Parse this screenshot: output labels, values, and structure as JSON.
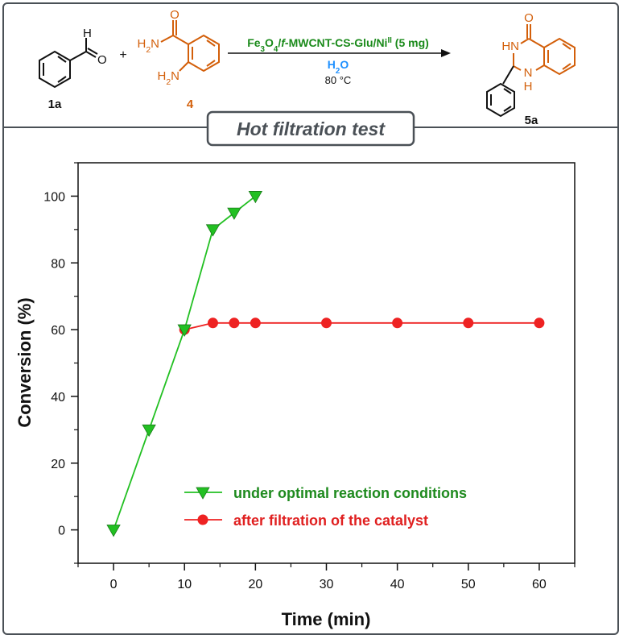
{
  "scheme": {
    "reactant_1_label": "1a",
    "reactant_1_atom_aldehyde_O": "O",
    "reactant_1_atom_aldehyde_H": "H",
    "plus": "+",
    "reactant_2_label": "4",
    "reactant_2_amide_O": "O",
    "reactant_2_amide_NH2": "H2N",
    "reactant_2_amine_NH2": "H2N",
    "catalyst": "Fe3O4/f-MWCNT-CS-Glu/NiII (5 mg)",
    "solvent": "H2O",
    "temperature": "80 °C",
    "product_label": "5a",
    "product_atom_O": "O",
    "product_atom_HN": "HN",
    "product_atom_NH_N": "N",
    "product_atom_NH_H": "H",
    "colors": {
      "reactant_2": "#d35f0a",
      "catalyst": "#1a8a1a",
      "solvent": "#1e90ff",
      "structure": "#111111"
    }
  },
  "test_title": "Hot filtration test",
  "chart_data": {
    "type": "line",
    "xlabel": "Time (min)",
    "ylabel": "Conversion (%)",
    "xlim": [
      -5,
      65
    ],
    "ylim": [
      -10,
      110
    ],
    "xticks": [
      0,
      10,
      20,
      30,
      40,
      50,
      60
    ],
    "yticks": [
      0,
      20,
      40,
      60,
      80,
      100
    ],
    "legend_position": "lower-center",
    "grid": false,
    "series": [
      {
        "name": "under optimal reaction conditions",
        "marker": "triangle-down",
        "color": "#22c022",
        "label_color": "#1e8a1e",
        "x": [
          0,
          5,
          10,
          14,
          17,
          20
        ],
        "y": [
          0,
          30,
          60,
          90,
          95,
          100
        ]
      },
      {
        "name": "after filtration of the catalyst",
        "marker": "circle",
        "color": "#ee2222",
        "label_color": "#e02020",
        "x": [
          10,
          14,
          17,
          20,
          30,
          40,
          50,
          60
        ],
        "y": [
          60,
          62,
          62,
          62,
          62,
          62,
          62,
          62
        ]
      }
    ]
  }
}
